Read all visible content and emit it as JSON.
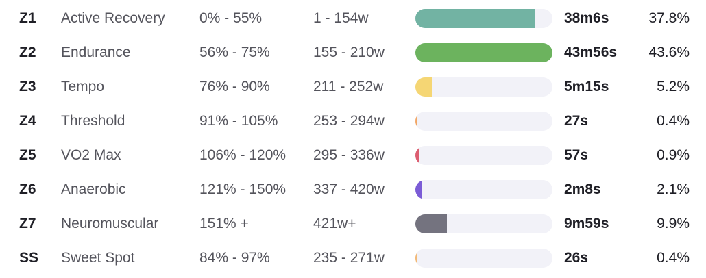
{
  "zones": [
    {
      "code": "Z1",
      "name": "Active Recovery",
      "percent_range": "0% - 55%",
      "watts_range": "1 - 154w",
      "time": "38m6s",
      "share": "37.8%",
      "bar_fraction": 0.87,
      "color": "#72b3a3"
    },
    {
      "code": "Z2",
      "name": "Endurance",
      "percent_range": "56% - 75%",
      "watts_range": "155 - 210w",
      "time": "43m56s",
      "share": "43.6%",
      "bar_fraction": 1.0,
      "color": "#6cb35e"
    },
    {
      "code": "Z3",
      "name": "Tempo",
      "percent_range": "76% - 90%",
      "watts_range": "211 - 252w",
      "time": "5m15s",
      "share": "5.2%",
      "bar_fraction": 0.12,
      "color": "#f5d674"
    },
    {
      "code": "Z4",
      "name": "Threshold",
      "percent_range": "91% - 105%",
      "watts_range": "253 - 294w",
      "time": "27s",
      "share": "0.4%",
      "bar_fraction": 0.01,
      "color": "#f2a766"
    },
    {
      "code": "Z5",
      "name": "VO2 Max",
      "percent_range": "106% - 120%",
      "watts_range": "295 - 336w",
      "time": "57s",
      "share": "0.9%",
      "bar_fraction": 0.025,
      "color": "#dc5d70"
    },
    {
      "code": "Z6",
      "name": "Anaerobic",
      "percent_range": "121% - 150%",
      "watts_range": "337 - 420w",
      "time": "2m8s",
      "share": "2.1%",
      "bar_fraction": 0.05,
      "color": "#7b5cd6"
    },
    {
      "code": "Z7",
      "name": "Neuromuscular",
      "percent_range": "151% +",
      "watts_range": "421w+",
      "time": "9m59s",
      "share": "9.9%",
      "bar_fraction": 0.23,
      "color": "#74737f"
    },
    {
      "code": "SS",
      "name": "Sweet Spot",
      "percent_range": "84% - 97%",
      "watts_range": "235 - 271w",
      "time": "26s",
      "share": "0.4%",
      "bar_fraction": 0.01,
      "color": "#f2b977"
    }
  ]
}
